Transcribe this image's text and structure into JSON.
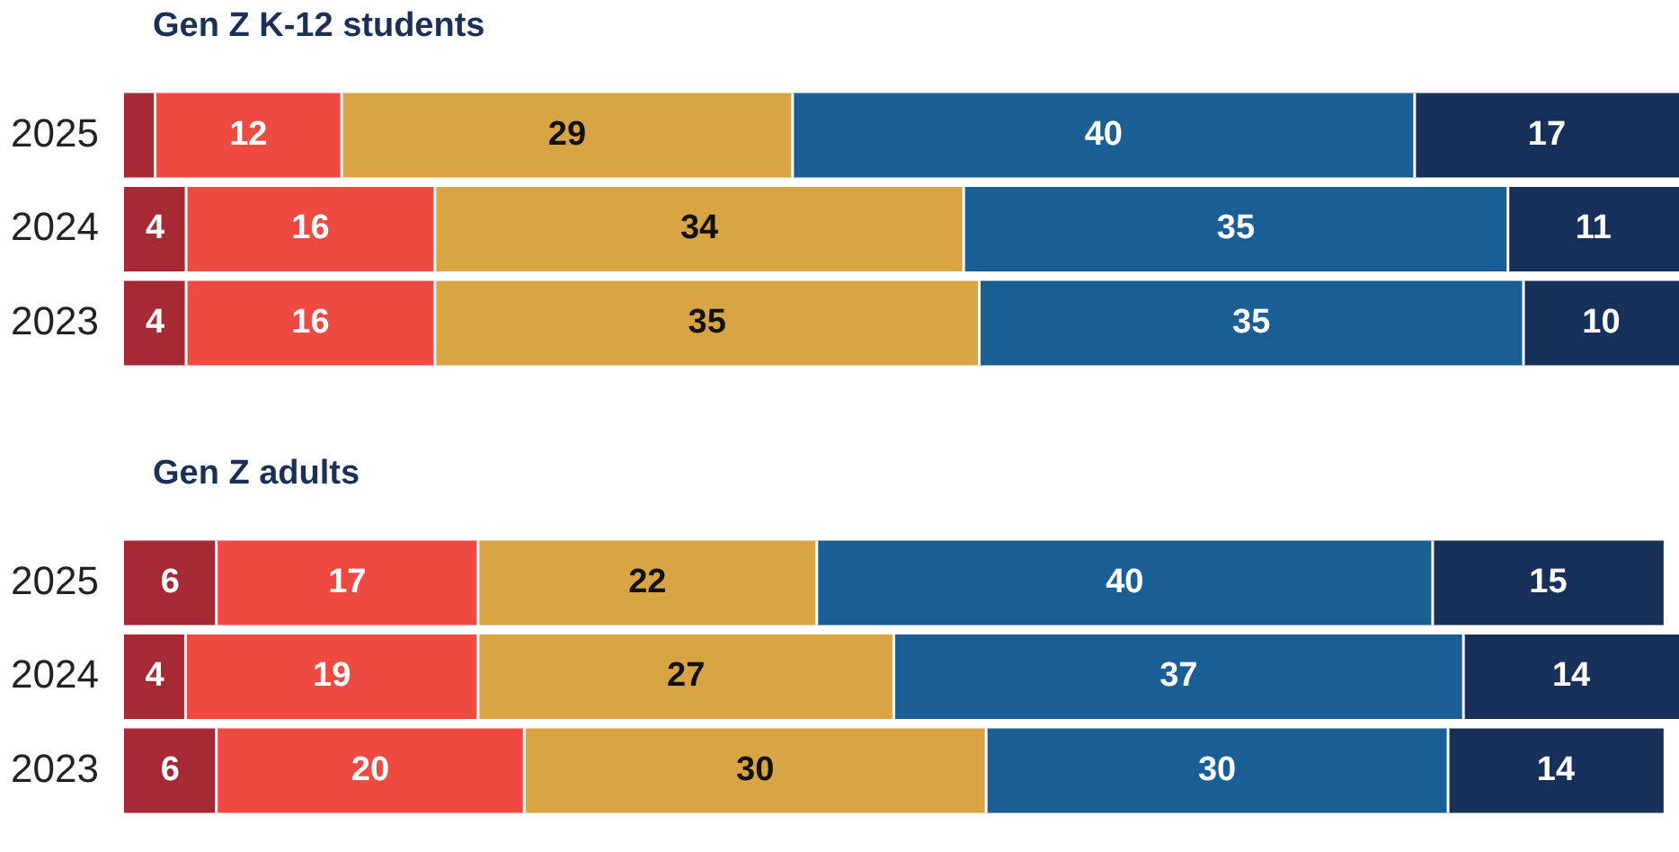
{
  "chart_data": [
    {
      "type": "bar",
      "title": "Gen Z K-12 students",
      "orientation": "horizontal",
      "stacked": true,
      "categories": [
        "2025",
        "2024",
        "2023"
      ],
      "legend": false,
      "series": [
        {
          "color": "#a52a36",
          "values": [
            2,
            4,
            4
          ],
          "value_labels": [
            null,
            "4",
            "4"
          ]
        },
        {
          "color": "#ef4a41",
          "values": [
            12,
            16,
            16
          ],
          "value_labels": [
            "12",
            "16",
            "16"
          ]
        },
        {
          "color": "#d9a444",
          "values": [
            29,
            34,
            35
          ],
          "value_labels": [
            "29",
            "34",
            "35"
          ]
        },
        {
          "color": "#1a5e96",
          "values": [
            40,
            35,
            35
          ],
          "value_labels": [
            "40",
            "35",
            "35"
          ]
        },
        {
          "color": "#17305a",
          "values": [
            17,
            11,
            10
          ],
          "value_labels": [
            "17",
            "11",
            "10"
          ]
        }
      ]
    },
    {
      "type": "bar",
      "title": "Gen Z adults",
      "orientation": "horizontal",
      "stacked": true,
      "categories": [
        "2025",
        "2024",
        "2023"
      ],
      "legend": false,
      "series": [
        {
          "color": "#a52a36",
          "values": [
            6,
            4,
            6
          ],
          "value_labels": [
            "6",
            "4",
            "6"
          ]
        },
        {
          "color": "#ef4a41",
          "values": [
            17,
            19,
            20
          ],
          "value_labels": [
            "17",
            "19",
            "20"
          ]
        },
        {
          "color": "#d9a444",
          "values": [
            22,
            27,
            30
          ],
          "value_labels": [
            "22",
            "27",
            "30"
          ]
        },
        {
          "color": "#1a5e96",
          "values": [
            40,
            37,
            30
          ],
          "value_labels": [
            "40",
            "37",
            "30"
          ]
        },
        {
          "color": "#17305a",
          "values": [
            15,
            14,
            14
          ],
          "value_labels": [
            "15",
            "14",
            "14"
          ]
        }
      ]
    }
  ]
}
